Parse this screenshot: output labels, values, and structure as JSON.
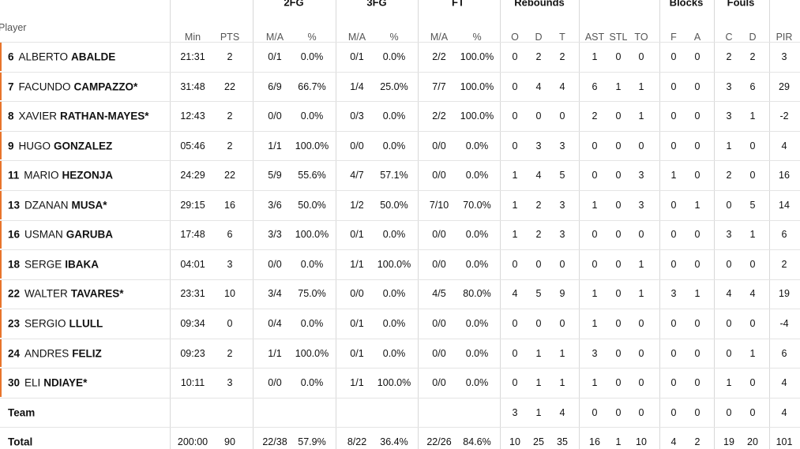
{
  "groups": [
    "2FG",
    "3FG",
    "FT",
    "Rebounds",
    "Blocks",
    "Fouls"
  ],
  "columns": [
    "Player",
    "Min",
    "PTS",
    "M/A",
    "%",
    "M/A",
    "%",
    "M/A",
    "%",
    "O",
    "D",
    "T",
    "AST",
    "STL",
    "TO",
    "F",
    "A",
    "C",
    "D",
    "PIR"
  ],
  "rows": [
    {
      "number": "6",
      "first": "ALBERTO",
      "last": "ABALDE",
      "stats": [
        "21:31",
        "2",
        "0/1",
        "0.0%",
        "0/1",
        "0.0%",
        "2/2",
        "100.0%",
        "0",
        "2",
        "2",
        "1",
        "0",
        "0",
        "0",
        "0",
        "2",
        "2",
        "3"
      ]
    },
    {
      "number": "7",
      "first": "FACUNDO",
      "last": "CAMPAZZO*",
      "stats": [
        "31:48",
        "22",
        "6/9",
        "66.7%",
        "1/4",
        "25.0%",
        "7/7",
        "100.0%",
        "0",
        "4",
        "4",
        "6",
        "1",
        "1",
        "0",
        "0",
        "3",
        "6",
        "29"
      ]
    },
    {
      "number": "8",
      "first": "XAVIER",
      "last": "RATHAN-MAYES*",
      "stats": [
        "12:43",
        "2",
        "0/0",
        "0.0%",
        "0/3",
        "0.0%",
        "2/2",
        "100.0%",
        "0",
        "0",
        "0",
        "2",
        "0",
        "1",
        "0",
        "0",
        "3",
        "1",
        "-2"
      ]
    },
    {
      "number": "9",
      "first": "HUGO",
      "last": "GONZALEZ",
      "stats": [
        "05:46",
        "2",
        "1/1",
        "100.0%",
        "0/0",
        "0.0%",
        "0/0",
        "0.0%",
        "0",
        "3",
        "3",
        "0",
        "0",
        "0",
        "0",
        "0",
        "1",
        "0",
        "4"
      ]
    },
    {
      "number": "11",
      "first": "MARIO",
      "last": "HEZONJA",
      "stats": [
        "24:29",
        "22",
        "5/9",
        "55.6%",
        "4/7",
        "57.1%",
        "0/0",
        "0.0%",
        "1",
        "4",
        "5",
        "0",
        "0",
        "3",
        "1",
        "0",
        "2",
        "0",
        "16"
      ]
    },
    {
      "number": "13",
      "first": "DZANAN",
      "last": "MUSA*",
      "stats": [
        "29:15",
        "16",
        "3/6",
        "50.0%",
        "1/2",
        "50.0%",
        "7/10",
        "70.0%",
        "1",
        "2",
        "3",
        "1",
        "0",
        "3",
        "0",
        "1",
        "0",
        "5",
        "14"
      ]
    },
    {
      "number": "16",
      "first": "USMAN",
      "last": "GARUBA",
      "stats": [
        "17:48",
        "6",
        "3/3",
        "100.0%",
        "0/1",
        "0.0%",
        "0/0",
        "0.0%",
        "1",
        "2",
        "3",
        "0",
        "0",
        "0",
        "0",
        "0",
        "3",
        "1",
        "6"
      ]
    },
    {
      "number": "18",
      "first": "SERGE",
      "last": "IBAKA",
      "stats": [
        "04:01",
        "3",
        "0/0",
        "0.0%",
        "1/1",
        "100.0%",
        "0/0",
        "0.0%",
        "0",
        "0",
        "0",
        "0",
        "0",
        "1",
        "0",
        "0",
        "0",
        "0",
        "2"
      ]
    },
    {
      "number": "22",
      "first": "WALTER",
      "last": "TAVARES*",
      "stats": [
        "23:31",
        "10",
        "3/4",
        "75.0%",
        "0/0",
        "0.0%",
        "4/5",
        "80.0%",
        "4",
        "5",
        "9",
        "1",
        "0",
        "1",
        "3",
        "1",
        "4",
        "4",
        "19"
      ]
    },
    {
      "number": "23",
      "first": "SERGIO",
      "last": "LLULL",
      "stats": [
        "09:34",
        "0",
        "0/4",
        "0.0%",
        "0/1",
        "0.0%",
        "0/0",
        "0.0%",
        "0",
        "0",
        "0",
        "1",
        "0",
        "0",
        "0",
        "0",
        "0",
        "0",
        "-4"
      ]
    },
    {
      "number": "24",
      "first": "ANDRES",
      "last": "FELIZ",
      "stats": [
        "09:23",
        "2",
        "1/1",
        "100.0%",
        "0/1",
        "0.0%",
        "0/0",
        "0.0%",
        "0",
        "1",
        "1",
        "3",
        "0",
        "0",
        "0",
        "0",
        "0",
        "1",
        "6"
      ]
    },
    {
      "number": "30",
      "first": "ELI",
      "last": "NDIAYE*",
      "stats": [
        "10:11",
        "3",
        "0/0",
        "0.0%",
        "1/1",
        "100.0%",
        "0/0",
        "0.0%",
        "0",
        "1",
        "1",
        "1",
        "0",
        "0",
        "0",
        "0",
        "1",
        "0",
        "4"
      ]
    }
  ],
  "team": {
    "label": "Team",
    "stats": [
      null,
      null,
      null,
      null,
      null,
      null,
      null,
      null,
      "3",
      "1",
      "4",
      "0",
      "0",
      "0",
      "0",
      "0",
      "0",
      "0",
      "4"
    ]
  },
  "total": {
    "label": "Total",
    "stats": [
      "200:00",
      "90",
      "22/38",
      "57.9%",
      "8/22",
      "36.4%",
      "22/26",
      "84.6%",
      "10",
      "25",
      "35",
      "16",
      "1",
      "10",
      "4",
      "2",
      "19",
      "20",
      "101"
    ]
  }
}
